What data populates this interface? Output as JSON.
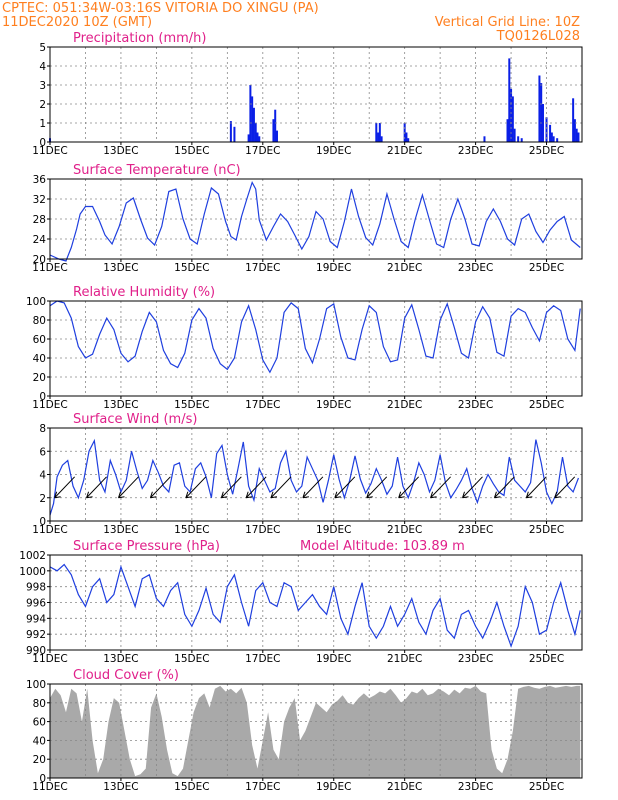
{
  "header": {
    "line1": "CPTEC:   051:34W-03:16S   VITORIA DO XINGU (PA)",
    "line2": "11DEC2020 10Z (GMT)",
    "grid_note": "Vertical Grid Line: 10Z",
    "code": "TQ0126L028"
  },
  "colors": {
    "title": "#e0208a",
    "header": "#ff7f1f",
    "line": "#1f3fdf",
    "bar": "#0a1fe6",
    "cloud": "#a9a9a9",
    "wind_arrow": "#000000"
  },
  "chart_data": [
    {
      "type": "bar",
      "title": "Precipitation  (mm/h)",
      "ylim": [
        0,
        5
      ],
      "yticks": [
        0,
        1,
        2,
        3,
        4,
        5
      ],
      "xticks": [
        "11DEC",
        "13DEC",
        "15DEC",
        "17DEC",
        "19DEC",
        "21DEC",
        "23DEC",
        "25DEC"
      ],
      "x_unit": "days after 11DEC 10Z",
      "x": [
        0.0,
        5.1,
        5.2,
        5.6,
        5.65,
        5.7,
        5.75,
        5.8,
        5.85,
        5.9,
        6.3,
        6.35,
        6.4,
        9.2,
        9.25,
        9.3,
        9.35,
        10.0,
        10.05,
        10.1,
        12.25,
        12.9,
        12.95,
        13.0,
        13.05,
        13.1,
        13.2,
        13.3,
        13.8,
        13.85,
        13.9,
        14.0,
        14.1,
        14.15,
        14.2,
        14.3,
        14.75,
        14.8,
        14.85,
        14.9
      ],
      "values": [
        0.2,
        1.1,
        0.8,
        0.4,
        3.0,
        2.4,
        1.8,
        1.0,
        0.5,
        0.3,
        1.2,
        1.7,
        0.6,
        1.0,
        0.5,
        1.0,
        0.3,
        1.0,
        0.5,
        0.2,
        0.3,
        1.2,
        4.4,
        2.8,
        2.4,
        0.7,
        0.3,
        0.2,
        3.5,
        3.1,
        2.0,
        1.3,
        0.9,
        0.5,
        0.3,
        0.2,
        2.3,
        1.2,
        0.7,
        0.5
      ]
    },
    {
      "type": "line",
      "title": "Surface Temperature  (nC)",
      "ylim": [
        20,
        36
      ],
      "yticks": [
        20,
        24,
        28,
        32,
        36
      ],
      "xticks": [
        "11DEC",
        "13DEC",
        "15DEC",
        "17DEC",
        "19DEC",
        "21DEC",
        "23DEC",
        "25DEC"
      ],
      "x_unit": "days after 11DEC 10Z",
      "x": [
        0.0,
        0.25,
        0.45,
        0.6,
        0.75,
        0.85,
        1.0,
        1.2,
        1.4,
        1.55,
        1.75,
        1.95,
        2.15,
        2.35,
        2.55,
        2.75,
        2.95,
        3.15,
        3.35,
        3.55,
        3.75,
        3.95,
        4.15,
        4.35,
        4.55,
        4.75,
        4.95,
        5.1,
        5.25,
        5.4,
        5.55,
        5.7,
        5.8,
        5.9,
        6.1,
        6.3,
        6.5,
        6.7,
        6.9,
        7.1,
        7.3,
        7.5,
        7.7,
        7.9,
        8.1,
        8.3,
        8.5,
        8.7,
        8.9,
        9.1,
        9.3,
        9.5,
        9.7,
        9.9,
        10.1,
        10.3,
        10.5,
        10.7,
        10.9,
        11.1,
        11.3,
        11.5,
        11.7,
        11.9,
        12.1,
        12.3,
        12.5,
        12.7,
        12.9,
        13.1,
        13.3,
        13.5,
        13.7,
        13.9,
        14.1,
        14.3,
        14.5,
        14.7,
        14.95
      ],
      "values": [
        20.8,
        20.0,
        19.6,
        22.3,
        26.0,
        29.0,
        30.5,
        30.5,
        27.5,
        24.8,
        23.0,
        26.5,
        31.2,
        32.2,
        28.0,
        24.2,
        22.8,
        26.5,
        33.5,
        34.0,
        28.0,
        24.0,
        23.0,
        29.0,
        34.2,
        33.0,
        27.5,
        24.5,
        23.8,
        28.5,
        32.0,
        35.3,
        34.0,
        27.8,
        23.8,
        26.5,
        29.0,
        27.5,
        24.8,
        22.0,
        24.5,
        29.5,
        28.0,
        23.5,
        22.3,
        27.5,
        34.0,
        28.5,
        24.3,
        22.8,
        27.0,
        33.0,
        28.0,
        23.5,
        22.3,
        28.0,
        32.8,
        27.8,
        23.0,
        22.3,
        28.0,
        32.0,
        28.0,
        23.0,
        22.6,
        27.5,
        30.0,
        27.5,
        24.0,
        22.8,
        28.0,
        29.0,
        25.5,
        23.3,
        25.8,
        27.5,
        28.5,
        23.8,
        22.3
      ]
    },
    {
      "type": "line",
      "title": "Relative Humidity  (%)",
      "ylim": [
        0,
        100
      ],
      "yticks": [
        0,
        20,
        40,
        60,
        80,
        100
      ],
      "xticks": [
        "11DEC",
        "13DEC",
        "15DEC",
        "17DEC",
        "19DEC",
        "21DEC",
        "23DEC",
        "25DEC"
      ],
      "x_unit": "days after 11DEC 10Z",
      "x": [
        0.0,
        0.2,
        0.4,
        0.6,
        0.8,
        1.0,
        1.2,
        1.4,
        1.6,
        1.8,
        2.0,
        2.2,
        2.4,
        2.6,
        2.8,
        3.0,
        3.2,
        3.4,
        3.6,
        3.8,
        4.0,
        4.2,
        4.4,
        4.6,
        4.8,
        5.0,
        5.2,
        5.4,
        5.6,
        5.8,
        6.0,
        6.2,
        6.4,
        6.6,
        6.8,
        7.0,
        7.2,
        7.4,
        7.6,
        7.8,
        8.0,
        8.2,
        8.4,
        8.6,
        8.8,
        9.0,
        9.2,
        9.4,
        9.6,
        9.8,
        10.0,
        10.2,
        10.4,
        10.6,
        10.8,
        11.0,
        11.2,
        11.4,
        11.6,
        11.8,
        12.0,
        12.2,
        12.4,
        12.6,
        12.8,
        13.0,
        13.2,
        13.4,
        13.6,
        13.8,
        14.0,
        14.2,
        14.4,
        14.6,
        14.8,
        14.95
      ],
      "values": [
        95,
        100,
        98,
        82,
        52,
        40,
        44,
        65,
        82,
        70,
        45,
        36,
        42,
        68,
        88,
        78,
        48,
        34,
        30,
        45,
        80,
        92,
        82,
        50,
        34,
        28,
        40,
        78,
        95,
        70,
        38,
        25,
        40,
        88,
        98,
        92,
        50,
        35,
        60,
        92,
        97,
        62,
        40,
        38,
        70,
        95,
        88,
        52,
        36,
        38,
        82,
        96,
        70,
        42,
        40,
        80,
        97,
        72,
        45,
        40,
        78,
        94,
        82,
        46,
        42,
        84,
        92,
        88,
        72,
        58,
        88,
        95,
        90,
        60,
        48,
        92
      ]
    },
    {
      "type": "line",
      "title": "Surface Wind  (m/s)",
      "ylim": [
        0,
        8
      ],
      "yticks": [
        0,
        2,
        4,
        6,
        8
      ],
      "xticks": [
        "11DEC",
        "13DEC",
        "15DEC",
        "17DEC",
        "19DEC",
        "21DEC",
        "23DEC",
        "25DEC"
      ],
      "x_unit": "days after 11DEC 10Z",
      "x": [
        0.0,
        0.1,
        0.2,
        0.35,
        0.5,
        0.65,
        0.8,
        0.95,
        1.1,
        1.25,
        1.4,
        1.55,
        1.7,
        1.85,
        2.0,
        2.15,
        2.3,
        2.45,
        2.6,
        2.75,
        2.9,
        3.05,
        3.2,
        3.35,
        3.5,
        3.65,
        3.8,
        3.95,
        4.1,
        4.25,
        4.4,
        4.55,
        4.7,
        4.85,
        5.0,
        5.15,
        5.3,
        5.45,
        5.6,
        5.75,
        5.9,
        6.05,
        6.2,
        6.35,
        6.5,
        6.65,
        6.8,
        6.95,
        7.1,
        7.25,
        7.4,
        7.55,
        7.7,
        7.85,
        8.0,
        8.15,
        8.3,
        8.45,
        8.6,
        8.75,
        8.9,
        9.05,
        9.2,
        9.35,
        9.5,
        9.65,
        9.8,
        9.95,
        10.1,
        10.25,
        10.4,
        10.55,
        10.7,
        10.85,
        11.0,
        11.15,
        11.3,
        11.45,
        11.6,
        11.75,
        11.9,
        12.05,
        12.2,
        12.35,
        12.5,
        12.65,
        12.8,
        12.95,
        13.1,
        13.25,
        13.4,
        13.55,
        13.7,
        13.85,
        14.0,
        14.15,
        14.3,
        14.45,
        14.6,
        14.75,
        14.9
      ],
      "values": [
        0.5,
        1.5,
        3.8,
        4.8,
        5.2,
        3.0,
        2.0,
        3.5,
        6.0,
        6.9,
        3.5,
        2.5,
        5.2,
        4.0,
        2.5,
        3.5,
        6.0,
        4.3,
        2.8,
        3.5,
        5.2,
        4.2,
        3.0,
        2.5,
        4.8,
        5.0,
        3.0,
        2.5,
        4.5,
        5.0,
        3.8,
        2.0,
        5.8,
        6.5,
        4.0,
        2.3,
        4.5,
        6.8,
        3.0,
        1.8,
        4.5,
        3.5,
        2.5,
        2.8,
        5.0,
        6.0,
        3.5,
        2.5,
        3.0,
        5.5,
        4.5,
        3.5,
        1.6,
        3.5,
        5.7,
        3.6,
        2.0,
        3.5,
        5.6,
        3.6,
        2.4,
        3.2,
        4.5,
        3.5,
        2.3,
        3.0,
        5.5,
        3.0,
        2.0,
        3.3,
        5.0,
        4.0,
        2.5,
        3.5,
        5.7,
        3.3,
        2.0,
        2.7,
        3.5,
        4.5,
        2.8,
        1.6,
        3.0,
        4.0,
        3.2,
        2.5,
        2.2,
        5.5,
        3.5,
        3.0,
        2.5,
        3.3,
        7.0,
        5.0,
        2.5,
        1.5,
        2.5,
        5.5,
        3.0,
        2.5,
        3.7
      ],
      "arrows_x": [
        0.3,
        1.2,
        2.1,
        3.0,
        4.0,
        5.0,
        5.7,
        6.4,
        7.3,
        8.2,
        9.1,
        10.0,
        10.9,
        11.8,
        12.7,
        13.6,
        14.4
      ]
    },
    {
      "type": "line",
      "title": "Surface Pressure  (hPa)",
      "subtitle": "Model Altitude: 103.89  m",
      "ylim": [
        990,
        1002
      ],
      "yticks": [
        990,
        992,
        994,
        996,
        998,
        1000,
        1002
      ],
      "xticks": [
        "11DEC",
        "13DEC",
        "15DEC",
        "17DEC",
        "19DEC",
        "21DEC",
        "23DEC",
        "25DEC"
      ],
      "x_unit": "days after 11DEC 10Z",
      "x": [
        0.0,
        0.2,
        0.4,
        0.6,
        0.8,
        1.0,
        1.2,
        1.4,
        1.6,
        1.8,
        2.0,
        2.2,
        2.4,
        2.6,
        2.8,
        3.0,
        3.2,
        3.4,
        3.6,
        3.8,
        4.0,
        4.2,
        4.4,
        4.6,
        4.8,
        5.0,
        5.2,
        5.4,
        5.6,
        5.8,
        6.0,
        6.2,
        6.4,
        6.6,
        6.8,
        7.0,
        7.2,
        7.4,
        7.6,
        7.8,
        8.0,
        8.2,
        8.4,
        8.6,
        8.8,
        9.0,
        9.2,
        9.4,
        9.6,
        9.8,
        10.0,
        10.2,
        10.4,
        10.6,
        10.8,
        11.0,
        11.2,
        11.4,
        11.6,
        11.8,
        12.0,
        12.2,
        12.4,
        12.6,
        12.8,
        13.0,
        13.2,
        13.4,
        13.6,
        13.8,
        14.0,
        14.2,
        14.4,
        14.6,
        14.8,
        14.95
      ],
      "values": [
        1000.5,
        1000.0,
        1000.8,
        999.5,
        997.0,
        995.5,
        998.0,
        999.0,
        996.0,
        997.0,
        1000.5,
        998.0,
        995.5,
        999.0,
        999.5,
        996.5,
        995.5,
        997.5,
        998.5,
        994.5,
        993.0,
        995.0,
        997.8,
        994.5,
        993.5,
        998.0,
        999.5,
        996.0,
        993.0,
        997.5,
        998.5,
        996.0,
        995.5,
        998.5,
        998.0,
        995.0,
        996.0,
        997.0,
        995.5,
        994.5,
        998.0,
        994.0,
        992.0,
        995.5,
        998.5,
        993.0,
        991.5,
        993.0,
        995.5,
        993.0,
        994.5,
        996.5,
        993.5,
        992.0,
        995.0,
        996.5,
        992.5,
        991.5,
        994.5,
        995.0,
        993.0,
        991.5,
        993.5,
        996.0,
        993.0,
        990.5,
        993.0,
        998.0,
        996.0,
        992.0,
        992.5,
        996.0,
        998.5,
        995.0,
        992.0,
        995.0
      ]
    },
    {
      "type": "area",
      "title": "Cloud Cover  (%)",
      "ylim": [
        0,
        100
      ],
      "yticks": [
        0,
        20,
        40,
        60,
        80,
        100
      ],
      "xticks": [
        "11DEC",
        "13DEC",
        "15DEC",
        "17DEC",
        "19DEC",
        "21DEC",
        "23DEC",
        "25DEC"
      ],
      "x_unit": "days after 11DEC 10Z",
      "x": [
        0.0,
        0.15,
        0.3,
        0.45,
        0.6,
        0.75,
        0.9,
        1.05,
        1.2,
        1.35,
        1.5,
        1.65,
        1.8,
        1.95,
        2.1,
        2.25,
        2.4,
        2.55,
        2.7,
        2.85,
        3.0,
        3.15,
        3.3,
        3.45,
        3.6,
        3.75,
        3.9,
        4.05,
        4.2,
        4.35,
        4.5,
        4.65,
        4.8,
        4.95,
        5.1,
        5.25,
        5.4,
        5.55,
        5.7,
        5.85,
        6.0,
        6.15,
        6.3,
        6.45,
        6.6,
        6.75,
        6.9,
        7.05,
        7.2,
        7.35,
        7.5,
        7.65,
        7.8,
        7.95,
        8.1,
        8.25,
        8.4,
        8.55,
        8.7,
        8.85,
        9.0,
        9.15,
        9.3,
        9.45,
        9.6,
        9.75,
        9.9,
        10.05,
        10.2,
        10.35,
        10.5,
        10.65,
        10.8,
        10.95,
        11.1,
        11.25,
        11.4,
        11.55,
        11.7,
        11.85,
        12.0,
        12.15,
        12.3,
        12.45,
        12.6,
        12.75,
        12.9,
        13.05,
        13.2,
        13.35,
        13.5,
        13.65,
        13.8,
        13.95,
        14.1,
        14.25,
        14.4,
        14.55,
        14.7,
        14.85,
        14.95
      ],
      "values": [
        85,
        95,
        88,
        70,
        95,
        90,
        60,
        95,
        40,
        5,
        20,
        60,
        85,
        80,
        50,
        20,
        2,
        4,
        10,
        75,
        90,
        65,
        30,
        5,
        2,
        10,
        40,
        70,
        85,
        90,
        75,
        95,
        98,
        92,
        95,
        90,
        96,
        80,
        35,
        10,
        40,
        70,
        30,
        20,
        60,
        75,
        85,
        40,
        50,
        65,
        80,
        75,
        70,
        78,
        82,
        88,
        80,
        78,
        85,
        90,
        85,
        88,
        92,
        90,
        95,
        88,
        80,
        85,
        92,
        90,
        95,
        88,
        90,
        95,
        92,
        88,
        94,
        90,
        96,
        95,
        98,
        92,
        90,
        30,
        10,
        5,
        20,
        50,
        95,
        97,
        98,
        96,
        95,
        97,
        98,
        96,
        97,
        98,
        97,
        98,
        98
      ]
    }
  ]
}
